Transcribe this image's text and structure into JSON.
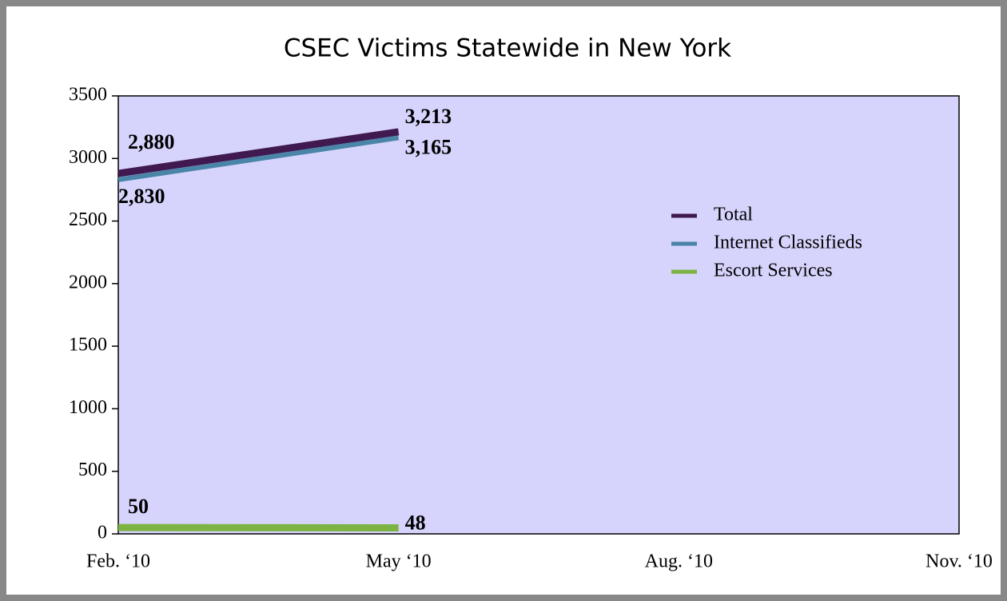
{
  "chart_data": {
    "type": "line",
    "title": "CSEC Victims Statewide in New York",
    "categories": [
      "Feb. ‘10",
      "May ‘10",
      "Aug. ‘10",
      "Nov. ‘10"
    ],
    "series": [
      {
        "name": "Total",
        "color": "#3f1950",
        "values": [
          2880,
          3213,
          null,
          null
        ],
        "value_labels": [
          "2,880",
          "3,213",
          null,
          null
        ]
      },
      {
        "name": "Internet Classifieds",
        "color": "#4a85a8",
        "values": [
          2830,
          3165,
          null,
          null
        ],
        "value_labels": [
          "2,830",
          "3,165",
          null,
          null
        ]
      },
      {
        "name": "Escort Services",
        "color": "#7cb342",
        "values": [
          50,
          48,
          null,
          null
        ],
        "value_labels": [
          "50",
          "48",
          null,
          null
        ]
      }
    ],
    "ylim": [
      0,
      3500
    ],
    "yticks": [
      0,
      500,
      1000,
      1500,
      2000,
      2500,
      3000,
      3500
    ],
    "background": "#d6d4fc",
    "legend": "right"
  }
}
